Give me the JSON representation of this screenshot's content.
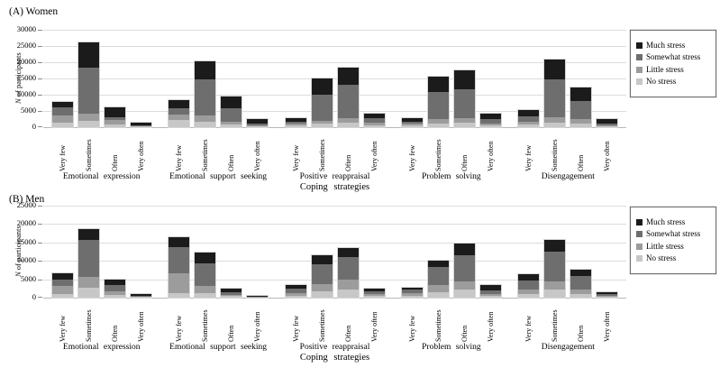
{
  "legend": {
    "position": "right",
    "items": [
      {
        "label": "Much stress",
        "color": "#1b1b1b"
      },
      {
        "label": "Somewhat stress",
        "color": "#6e6e6e"
      },
      {
        "label": "Little stress",
        "color": "#9c9c9c"
      },
      {
        "label": "No stress",
        "color": "#c7c7c7"
      }
    ]
  },
  "chart_data": [
    {
      "type": "bar",
      "stacked": true,
      "panel_label": "(A) Women",
      "title": "",
      "xlabel": "Coping strategies",
      "ylabel": "N of participants",
      "ylabel_italic": "N",
      "ylabel_rest": " of participants",
      "ylim": [
        0,
        30000
      ],
      "yticks": [
        "0",
        "5000",
        "10000",
        "15000",
        "20000",
        "25000",
        "30000"
      ],
      "grid": true,
      "categories": [
        "Emotional expression",
        "Emotional support seeking",
        "Positive reappraisal",
        "Problem solving",
        "Disengagement"
      ],
      "bar_labels": [
        "Very few",
        "Sometimes",
        "Often",
        "Very often"
      ],
      "series": [
        {
          "name": "No stress",
          "color": "#c7c7c7",
          "values": [
            [
              1400,
              2000,
              800,
              200
            ],
            [
              2100,
              1800,
              900,
              300
            ],
            [
              500,
              1000,
              1400,
              600
            ],
            [
              600,
              1200,
              1400,
              500
            ],
            [
              900,
              1500,
              1200,
              300
            ]
          ]
        },
        {
          "name": "Little stress",
          "color": "#9c9c9c",
          "values": [
            [
              2100,
              2200,
              1300,
              200
            ],
            [
              1900,
              1900,
              800,
              400
            ],
            [
              600,
              900,
              1400,
              700
            ],
            [
              600,
              1200,
              1400,
              500
            ],
            [
              800,
              1600,
              1200,
              400
            ]
          ]
        },
        {
          "name": "Somewhat stress",
          "color": "#6e6e6e",
          "values": [
            [
              2500,
              14200,
              1000,
              300
            ],
            [
              1800,
              11000,
              4100,
              500
            ],
            [
              600,
              8100,
              10200,
              1500
            ],
            [
              500,
              8500,
              8800,
              1400
            ],
            [
              1700,
              11500,
              5700,
              500
            ]
          ]
        },
        {
          "name": "Much stress",
          "color": "#1b1b1b",
          "values": [
            [
              1700,
              7600,
              3000,
              600
            ],
            [
              2500,
              5700,
              3700,
              1400
            ],
            [
              1100,
              5100,
              5500,
              1500
            ],
            [
              1200,
              4800,
              5800,
              1800
            ],
            [
              2000,
              6300,
              4200,
              1200
            ]
          ]
        }
      ]
    },
    {
      "type": "bar",
      "stacked": true,
      "panel_label": "(B) Men",
      "title": "",
      "xlabel": "Coping strategies",
      "ylabel": "N of participants",
      "ylabel_italic": "N",
      "ylabel_rest": " of participants",
      "ylim": [
        0,
        25000
      ],
      "yticks": [
        "0",
        "5000",
        "10000",
        "15000",
        "20000",
        "25000"
      ],
      "grid": true,
      "categories": [
        "Emotional expression",
        "Emotional support seeking",
        "Positive reappraisal",
        "Problem solving",
        "Disengagement"
      ],
      "bar_labels": [
        "Very few",
        "Sometimes",
        "Often",
        "Very often"
      ],
      "series": [
        {
          "name": "No stress",
          "color": "#c7c7c7",
          "values": [
            [
              1000,
              2700,
              700,
              150
            ],
            [
              1200,
              1200,
              400,
              100
            ],
            [
              600,
              1800,
              2300,
              500
            ],
            [
              600,
              1600,
              2100,
              500
            ],
            [
              1000,
              2100,
              1100,
              200
            ]
          ]
        },
        {
          "name": "Little stress",
          "color": "#9c9c9c",
          "values": [
            [
              2100,
              2900,
              900,
              150
            ],
            [
              5400,
              1900,
              300,
              100
            ],
            [
              700,
              1900,
              2500,
              500
            ],
            [
              700,
              1800,
              2300,
              600
            ],
            [
              1100,
              2300,
              1200,
              300
            ]
          ]
        },
        {
          "name": "Somewhat stress",
          "color": "#6e6e6e",
          "values": [
            [
              1800,
              10100,
              1800,
              250
            ],
            [
              7200,
              6300,
              800,
              100
            ],
            [
              1200,
              5300,
              6300,
              800
            ],
            [
              800,
              4900,
              7100,
              800
            ],
            [
              2500,
              8000,
              3500,
              500
            ]
          ]
        },
        {
          "name": "Much stress",
          "color": "#1b1b1b",
          "values": [
            [
              1800,
              3000,
              1600,
              350
            ],
            [
              2600,
              2900,
              1000,
              100
            ],
            [
              1000,
              2500,
              2500,
              700
            ],
            [
              600,
              1800,
              3300,
              1500
            ],
            [
              1800,
              3400,
              1800,
              500
            ]
          ]
        }
      ]
    }
  ]
}
